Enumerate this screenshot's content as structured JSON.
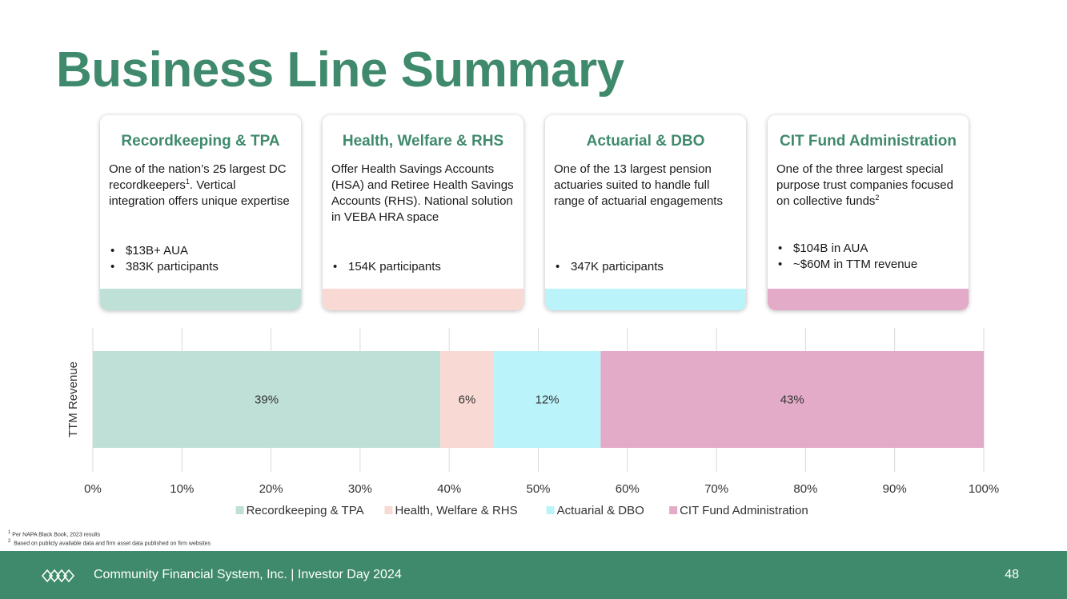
{
  "slide": {
    "title": "Business Line Summary"
  },
  "cards": [
    {
      "title": "Recordkeeping & TPA",
      "desc_before_sup": "One of the nation’s 25 largest DC recordkeepers",
      "desc_sup": "1",
      "desc_after_sup": ". Vertical integration offers unique expertise",
      "bullets": [
        "$13B+ AUA",
        "383K participants"
      ],
      "color": "#bfe0d6"
    },
    {
      "title": "Health, Welfare & RHS",
      "desc_before_sup": "Offer Health Savings Accounts (HSA) and Retiree Health Savings Accounts (RHS). National solution in VEBA HRA space",
      "desc_sup": "",
      "desc_after_sup": "",
      "bullets": [
        "154K participants"
      ],
      "color": "#f8d9d4"
    },
    {
      "title": "Actuarial & DBO",
      "desc_before_sup": "One of the 13 largest pension actuaries suited to handle full range of actuarial engagements",
      "desc_sup": "",
      "desc_after_sup": "",
      "bullets": [
        "347K participants"
      ],
      "color": "#baf3fa"
    },
    {
      "title": "CIT Fund Administration",
      "desc_before_sup": "One of the three largest special purpose trust companies focused on collective funds",
      "desc_sup": "2",
      "desc_after_sup": "",
      "bullets": [
        "$104B in AUA",
        "~$60M in TTM revenue"
      ],
      "color": "#e3abc8"
    }
  ],
  "chart_data": {
    "type": "bar",
    "orientation": "horizontal",
    "stacked": true,
    "categories": [
      "TTM Revenue"
    ],
    "ylabel": "TTM Revenue",
    "xlim": [
      0,
      100
    ],
    "x_ticks": [
      "0%",
      "10%",
      "20%",
      "30%",
      "40%",
      "50%",
      "60%",
      "70%",
      "80%",
      "90%",
      "100%"
    ],
    "grid": true,
    "legend_position": "bottom",
    "series": [
      {
        "name": "Recordkeeping & TPA",
        "values": [
          39
        ],
        "label": "39%",
        "color": "#bfe0d6"
      },
      {
        "name": "Health, Welfare & RHS",
        "values": [
          6
        ],
        "label": "6%",
        "color": "#f8d9d4"
      },
      {
        "name": "Actuarial & DBO",
        "values": [
          12
        ],
        "label": "12%",
        "color": "#baf3fa"
      },
      {
        "name": "CIT Fund Administration",
        "values": [
          43
        ],
        "label": "43%",
        "color": "#e3abc8"
      }
    ]
  },
  "footnotes": {
    "note1_num": "1",
    "note1": "Per NAPA Black Book, 2023 results",
    "note2_num": "2",
    "note2": "Based on publicly available data and firm asset data published on firm websites"
  },
  "footer": {
    "company": "Community Financial System, Inc.  |  Investor Day 2024",
    "page_number": "48",
    "logo_icon": "knot-logo-icon"
  }
}
